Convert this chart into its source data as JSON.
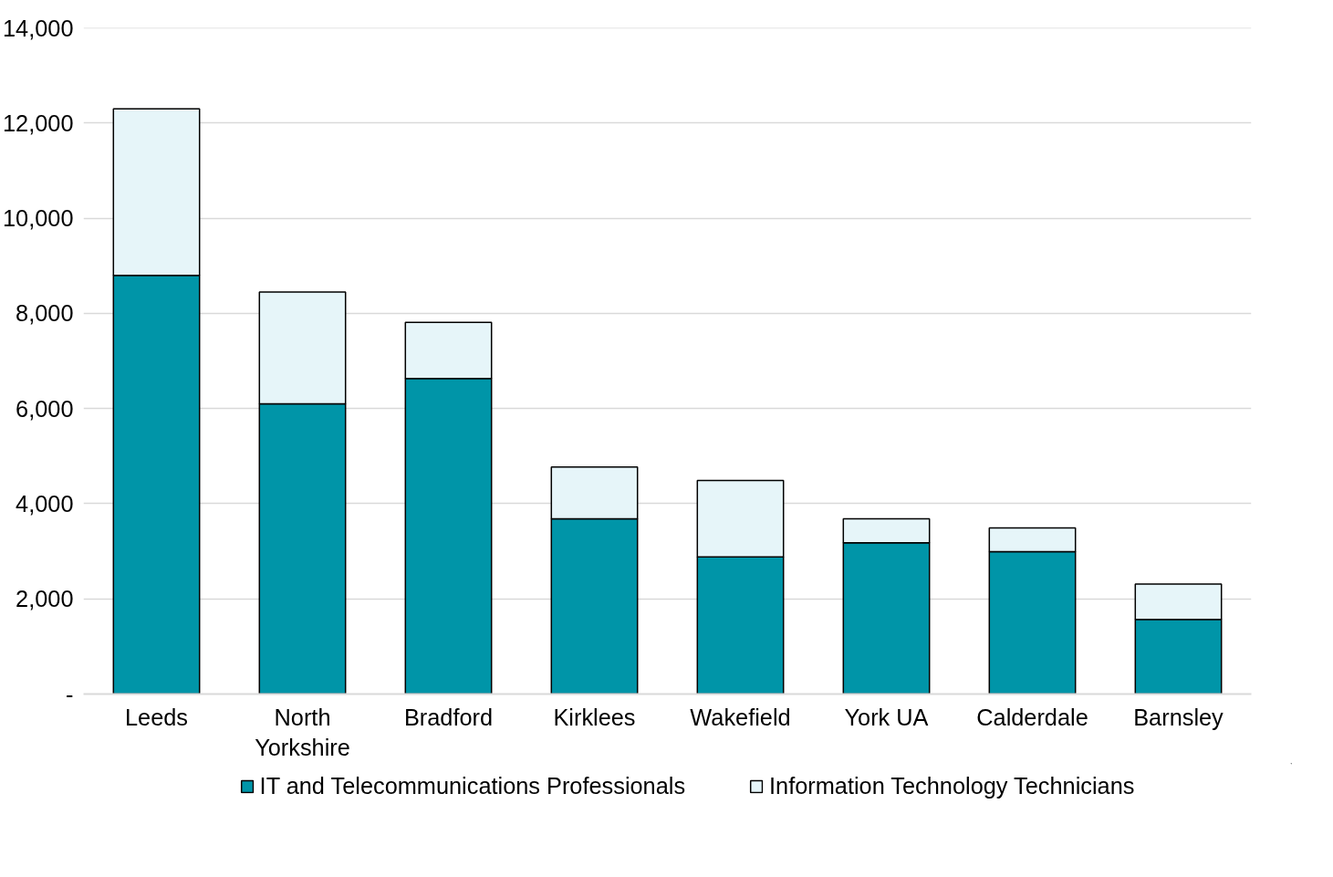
{
  "chart_data": {
    "type": "bar",
    "stacked": true,
    "categories": [
      "Leeds",
      "North\nYorkshire",
      "Bradford",
      "Kirklees",
      "Wakefield",
      "York UA",
      "Calderdale",
      "Barnsley"
    ],
    "series": [
      {
        "name": "IT and Telecommunications Professionals",
        "color": "#0095a8",
        "values": [
          8800,
          6100,
          6630,
          3680,
          2880,
          3180,
          2990,
          1570
        ]
      },
      {
        "name": "Information Technology Technicians",
        "color": "#e6f5f9",
        "values": [
          3500,
          2350,
          1180,
          1090,
          1610,
          500,
          500,
          740
        ]
      }
    ],
    "ylim": [
      0,
      14000
    ],
    "yticks": [
      {
        "value": 0,
        "label": "-"
      },
      {
        "value": 2000,
        "label": "2,000"
      },
      {
        "value": 4000,
        "label": "4,000"
      },
      {
        "value": 6000,
        "label": "6,000"
      },
      {
        "value": 8000,
        "label": "8,000"
      },
      {
        "value": 10000,
        "label": "10,000"
      },
      {
        "value": 12000,
        "label": "12,000"
      },
      {
        "value": 14000,
        "label": "14,000"
      }
    ],
    "grid": "y",
    "legend": "bottom"
  }
}
